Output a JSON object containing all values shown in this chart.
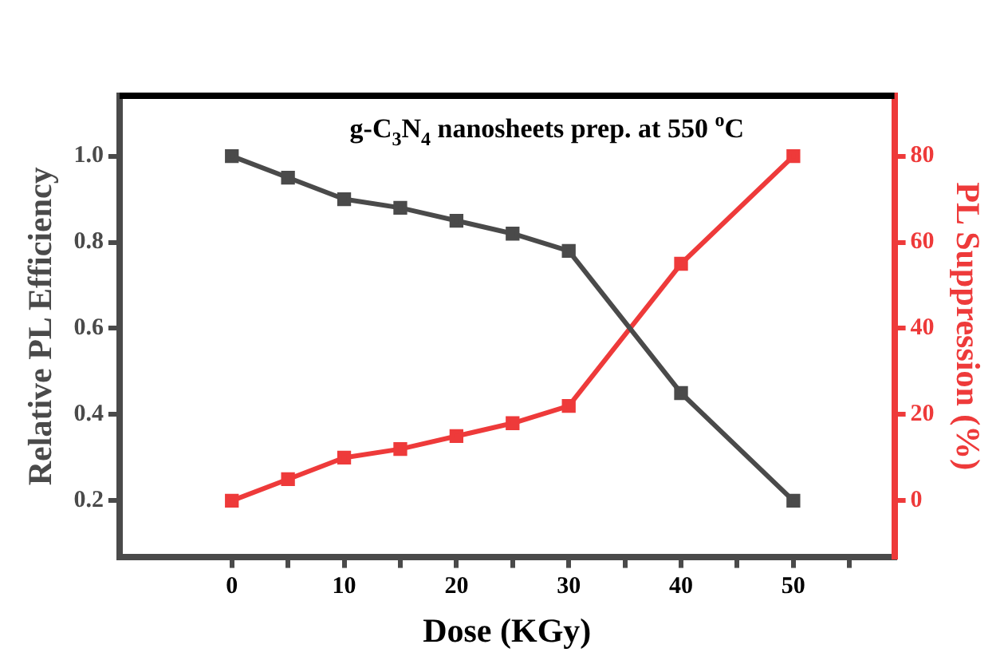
{
  "chart_data": {
    "type": "line",
    "title": "g-C$_{3}$N$_{4}$ nanosheets prep. at 550 $^{o}$C",
    "xlabel": "Dose (KGy)",
    "ylabel": "Relative PL Efficiency",
    "y2label": "PL Suppression (%)",
    "x": [
      0,
      5,
      10,
      15,
      20,
      25,
      30,
      40,
      50
    ],
    "series": [
      {
        "color": "#4a4a4a",
        "values": [
          1.0,
          0.95,
          0.9,
          0.88,
          0.85,
          0.82,
          0.78,
          0.45,
          0.2
        ]
      },
      {
        "color": "#ee3a3a",
        "axis": "y2",
        "values": [
          0,
          5,
          10,
          12,
          15,
          18,
          22,
          55,
          80
        ]
      }
    ],
    "xlim": [
      -10,
      59
    ],
    "xticks": [
      0,
      {
        "value": 5,
        "label": null
      },
      10,
      {
        "value": 15,
        "label": null
      },
      20,
      {
        "value": 25,
        "label": null
      },
      30,
      {
        "value": 35,
        "label": null
      },
      40,
      {
        "value": 45,
        "label": null
      },
      50,
      {
        "value": 55,
        "label": null
      }
    ],
    "ylim": [
      0.07,
      1.14
    ],
    "yticks": [
      0.2,
      0.4,
      0.6,
      0.8,
      {
        "value": 1,
        "label": "1.0"
      }
    ],
    "y2lim": [
      -13,
      94
    ],
    "y2ticks": [
      0,
      20,
      40,
      60,
      80
    ],
    "marker": "square",
    "line_style": "solid",
    "grid": false,
    "legend": false
  }
}
